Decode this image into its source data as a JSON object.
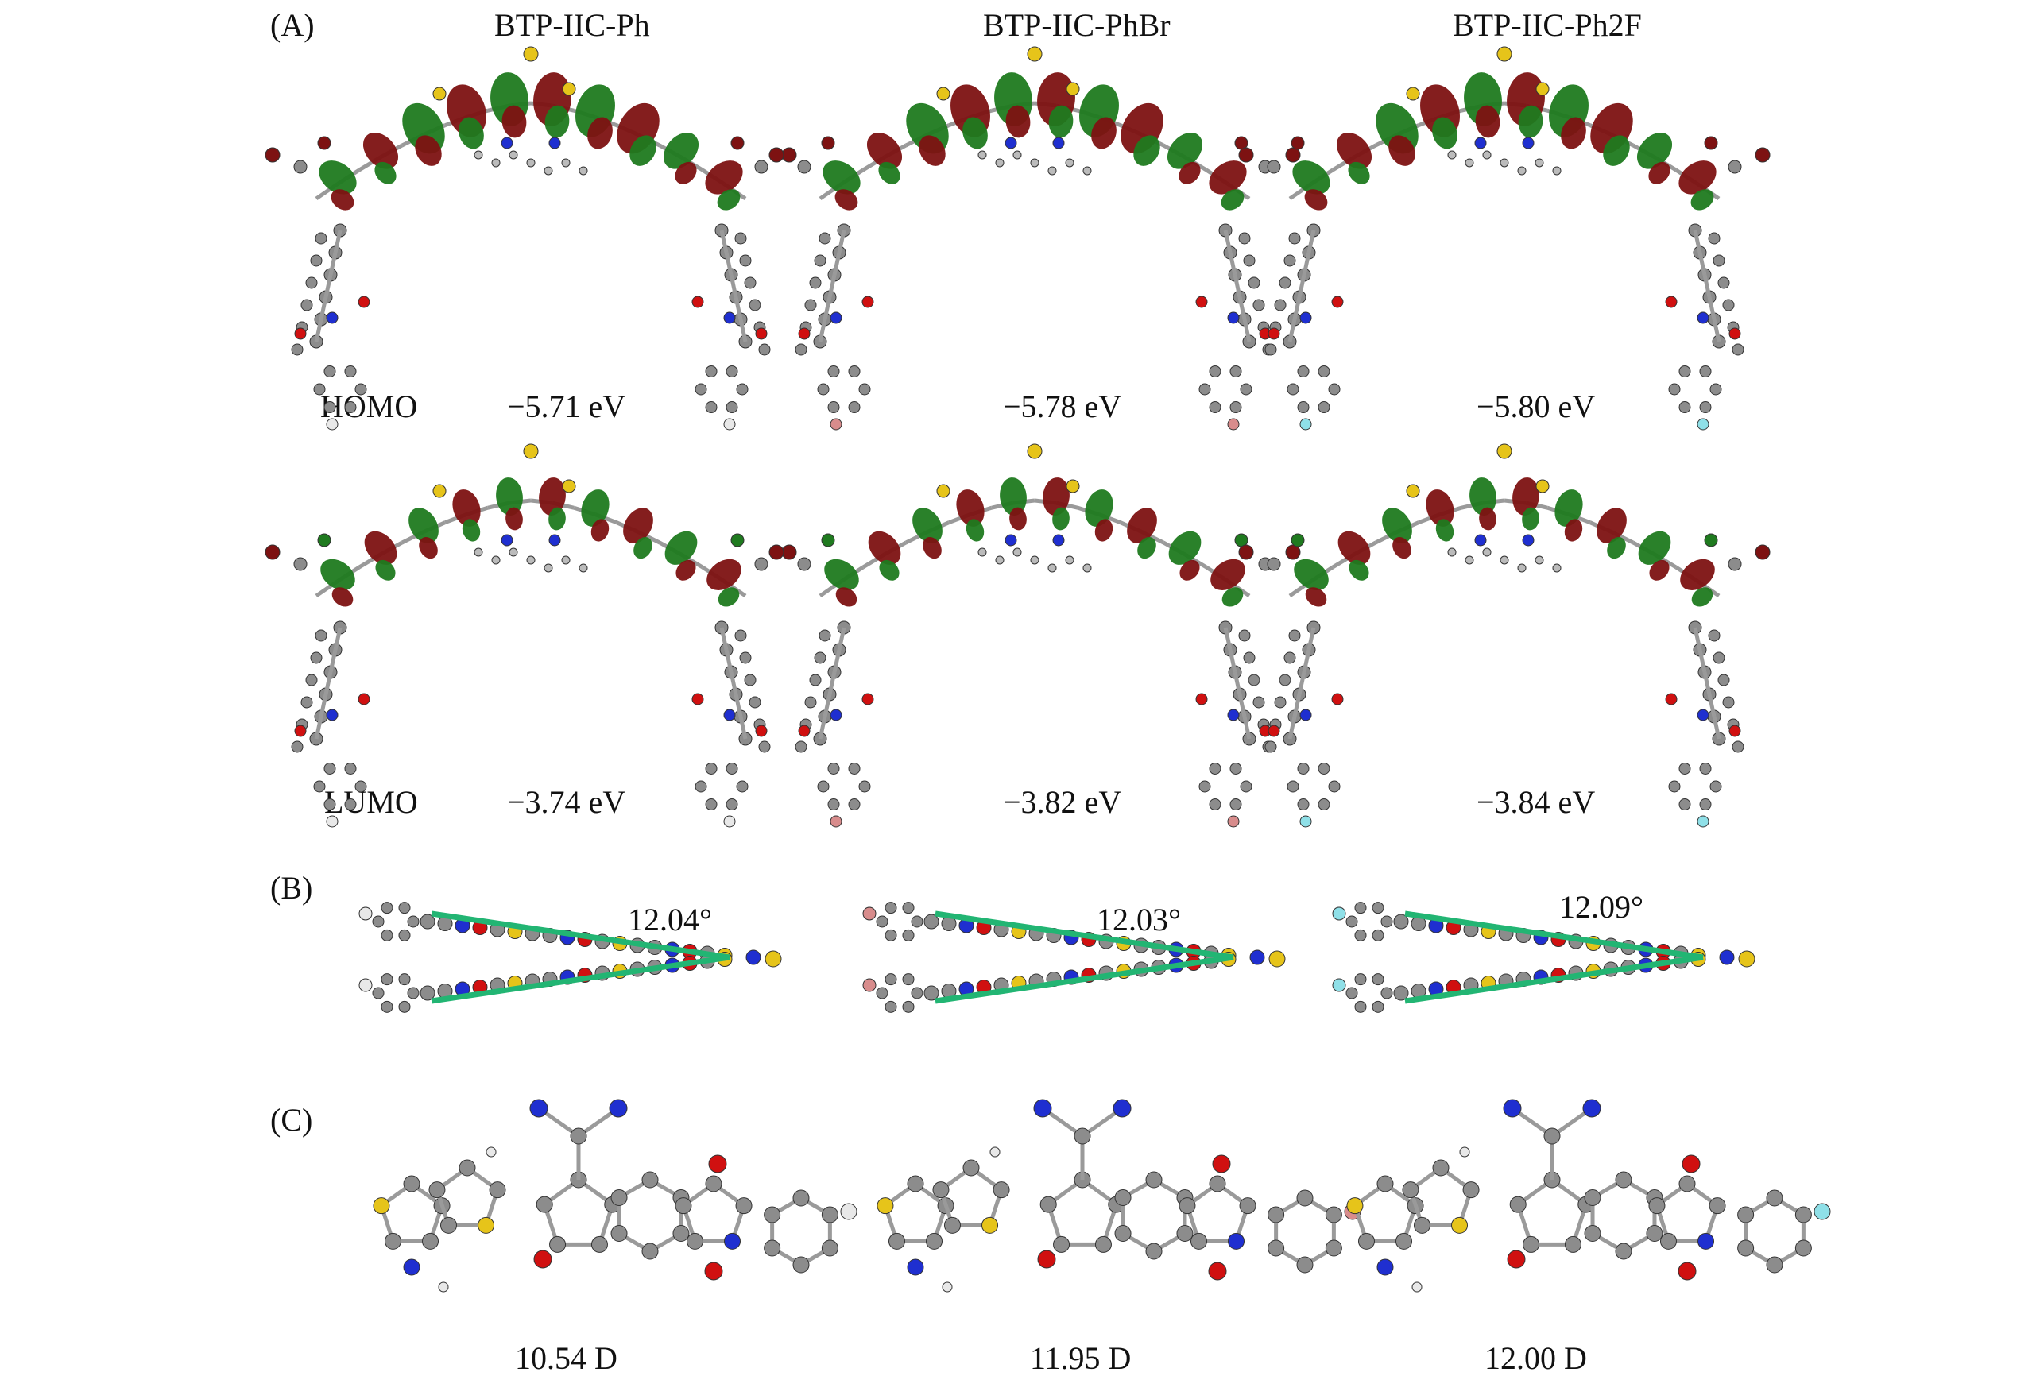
{
  "panels": {
    "a": "(A)",
    "b": "(B)",
    "c": "(C)"
  },
  "molecules": [
    {
      "name": "BTP-IIC-Ph",
      "homo": "−5.71 eV",
      "lumo": "−3.74 eV",
      "angle": "12.04°",
      "dipole": "10.54 D",
      "halogen": "none"
    },
    {
      "name": "BTP-IIC-PhBr",
      "homo": "−5.78 eV",
      "lumo": "−3.82 eV",
      "angle": "12.03°",
      "dipole": "11.95 D",
      "halogen": "Br"
    },
    {
      "name": "BTP-IIC-Ph2F",
      "homo": "−5.80 eV",
      "lumo": "−3.84 eV",
      "angle": "12.09°",
      "dipole": "12.00 D",
      "halogen": "F"
    }
  ],
  "rows": {
    "homo": "HOMO",
    "lumo": "LUMO"
  },
  "colors": {
    "lobe_red": "#7d1212",
    "lobe_green": "#1f7a1f",
    "carbon": "#8c8c8c",
    "nitrogen": "#1f2fd0",
    "oxygen": "#d01010",
    "sulfur": "#e6c41a",
    "bromine": "#d88c8c",
    "fluorine": "#8fe0e8",
    "plane_line": "#22b573",
    "hydrogen": "#e8e8e8"
  }
}
